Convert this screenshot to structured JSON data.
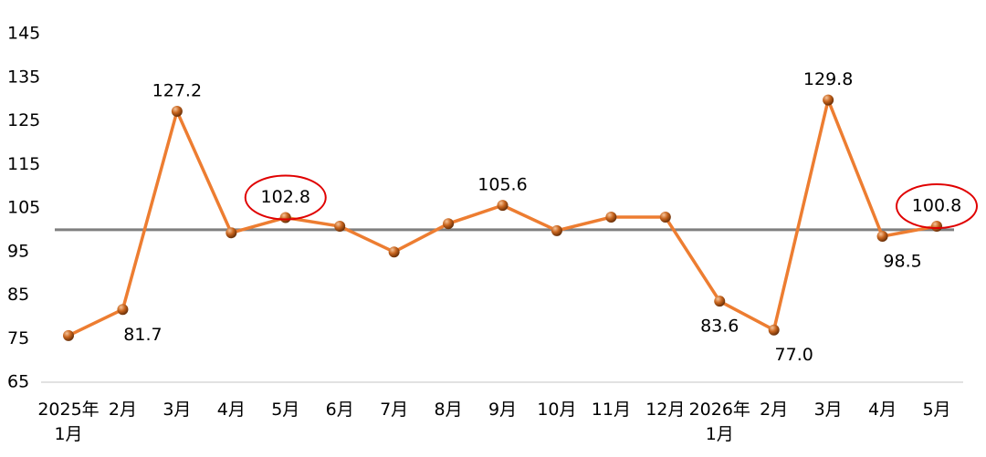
{
  "chart_data": {
    "type": "line",
    "categories": [
      "2025年\n1月",
      "2月",
      "3月",
      "4月",
      "5月",
      "6月",
      "7月",
      "8月",
      "9月",
      "10月",
      "11月",
      "12月",
      "2026年\n1月",
      "2月",
      "3月",
      "4月",
      "5月"
    ],
    "values": [
      75.7,
      81.7,
      127.2,
      99.3,
      102.8,
      100.8,
      94.9,
      101.4,
      105.6,
      99.8,
      102.9,
      102.9,
      83.6,
      77.0,
      129.8,
      98.5,
      100.8
    ],
    "value_labels": [
      null,
      "81.7",
      "127.2",
      null,
      "102.8",
      null,
      null,
      null,
      "105.6",
      null,
      null,
      null,
      "83.6",
      "77.0",
      "129.8",
      "98.5",
      "100.8"
    ],
    "color": "#ed7d31",
    "ylim": [
      65,
      145
    ],
    "yticks": [
      65,
      75,
      85,
      95,
      105,
      115,
      125,
      135,
      145
    ],
    "reference_line": 100,
    "highlighted": [
      4,
      16
    ]
  }
}
